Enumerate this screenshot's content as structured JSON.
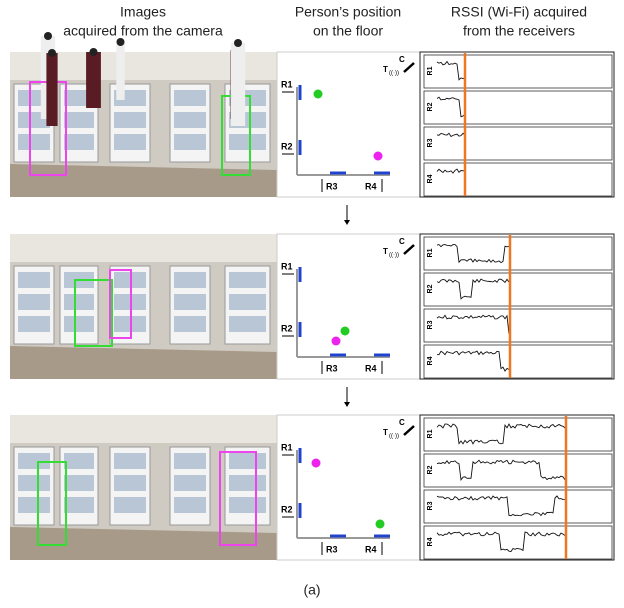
{
  "headers": [
    [
      "Images",
      "acquired from the camera"
    ],
    [
      "Person’s position",
      "on the floor"
    ],
    [
      "RSSI (Wi-Fi) acquired",
      "from the receivers"
    ]
  ],
  "panels": [
    {
      "floor": {
        "r1": "R1",
        "r2": "R2",
        "r3": "R3",
        "r4": "R4",
        "c": "C",
        "t": "T"
      },
      "rssi": [
        "R1",
        "R2",
        "R3",
        "R4"
      ]
    },
    {
      "floor": {
        "r1": "R1",
        "r2": "R2",
        "r3": "R3",
        "r4": "R4",
        "c": "C",
        "t": "T"
      },
      "rssi": [
        "R1",
        "R2",
        "R3",
        "R4"
      ]
    },
    {
      "floor": {
        "r1": "R1",
        "r2": "R2",
        "r3": "R3",
        "r4": "R4",
        "c": "C",
        "t": "T"
      },
      "rssi": [
        "R1",
        "R2",
        "R3",
        "R4"
      ]
    }
  ],
  "caption": "(a)"
}
